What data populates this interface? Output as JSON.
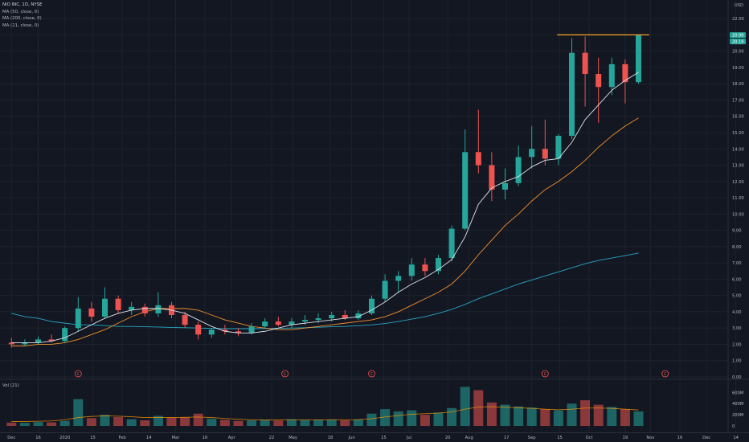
{
  "header": {
    "title": "NIO INC, 1D, NYSE",
    "indicators": [
      "MA (50, close, 0)",
      "MA (200, close, 0)",
      "MA (21, close, 0)"
    ],
    "currency": "USD",
    "volume_label": "Vol (21)"
  },
  "last_price_label": "20.99",
  "last_price_label_2": "20.19",
  "earnings_marker": "E",
  "chart_data": {
    "type": "candlestick",
    "title": "NIO INC, 1D, NYSE",
    "y_axis": {
      "ticks": [
        0,
        1,
        2,
        3,
        4,
        5,
        6,
        7,
        8,
        9,
        10,
        11,
        12,
        13,
        14,
        15,
        16,
        17,
        18,
        19,
        20,
        21,
        22
      ],
      "tick_labels": [
        "0.00",
        "1.00",
        "2.00",
        "3.00",
        "4.00",
        "5.00",
        "6.00",
        "7.00",
        "8.00",
        "9.00",
        "10.00",
        "11.00",
        "12.00",
        "13.00",
        "14.00",
        "15.00",
        "16.00",
        "17.00",
        "18.00",
        "19.00",
        "20.00",
        "21.00",
        "22.00"
      ],
      "range": [
        0,
        22.5
      ]
    },
    "volume_axis": {
      "ticks": [
        0,
        200,
        400,
        600
      ],
      "tick_labels": [
        "0",
        "200M",
        "400M",
        "600M"
      ],
      "units": "M"
    },
    "x_axis": {
      "tick_labels": [
        "Dec",
        "16",
        "2020",
        "15",
        "Feb",
        "14",
        "Mar",
        "16",
        "Apr",
        "22",
        "May",
        "18",
        "Jun",
        "15",
        "Jul",
        "20",
        "Aug",
        "17",
        "Sep",
        "15",
        "Oct",
        "19",
        "Nov",
        "16",
        "Dec",
        "14"
      ],
      "tick_weeks": [
        0.5,
        2.5,
        4.5,
        6.6,
        8.8,
        10.8,
        12.8,
        15.0,
        17.0,
        20.0,
        21.6,
        24.4,
        26.0,
        28.4,
        30.3,
        33.2,
        34.8,
        37.6,
        39.5,
        41.6,
        43.8,
        46.5,
        48.4,
        50.6,
        52.6,
        54.8
      ]
    },
    "weekly_candles": [
      {
        "o": 2.1,
        "h": 2.4,
        "l": 1.8,
        "c": 2.0
      },
      {
        "o": 2.0,
        "h": 2.3,
        "l": 1.9,
        "c": 2.1
      },
      {
        "o": 2.1,
        "h": 2.5,
        "l": 2.0,
        "c": 2.3
      },
      {
        "o": 2.3,
        "h": 2.6,
        "l": 2.1,
        "c": 2.2
      },
      {
        "o": 2.2,
        "h": 3.1,
        "l": 2.1,
        "c": 3.0
      },
      {
        "o": 3.0,
        "h": 4.9,
        "l": 2.8,
        "c": 4.2
      },
      {
        "o": 4.2,
        "h": 4.6,
        "l": 3.4,
        "c": 3.7
      },
      {
        "o": 3.7,
        "h": 5.5,
        "l": 3.6,
        "c": 4.8
      },
      {
        "o": 4.8,
        "h": 5.0,
        "l": 3.9,
        "c": 4.1
      },
      {
        "o": 4.1,
        "h": 4.6,
        "l": 3.8,
        "c": 4.3
      },
      {
        "o": 4.3,
        "h": 4.5,
        "l": 3.7,
        "c": 3.9
      },
      {
        "o": 3.9,
        "h": 5.2,
        "l": 3.7,
        "c": 4.4
      },
      {
        "o": 4.4,
        "h": 4.6,
        "l": 3.6,
        "c": 3.8
      },
      {
        "o": 3.8,
        "h": 4.0,
        "l": 3.0,
        "c": 3.2
      },
      {
        "o": 3.2,
        "h": 3.4,
        "l": 2.3,
        "c": 2.6
      },
      {
        "o": 2.6,
        "h": 3.0,
        "l": 2.4,
        "c": 2.9
      },
      {
        "o": 2.9,
        "h": 3.2,
        "l": 2.6,
        "c": 2.8
      },
      {
        "o": 2.8,
        "h": 3.0,
        "l": 2.5,
        "c": 2.7
      },
      {
        "o": 2.7,
        "h": 3.3,
        "l": 2.6,
        "c": 3.1
      },
      {
        "o": 3.1,
        "h": 3.6,
        "l": 3.0,
        "c": 3.4
      },
      {
        "o": 3.4,
        "h": 3.7,
        "l": 3.1,
        "c": 3.2
      },
      {
        "o": 3.2,
        "h": 3.6,
        "l": 3.0,
        "c": 3.4
      },
      {
        "o": 3.4,
        "h": 3.8,
        "l": 3.2,
        "c": 3.5
      },
      {
        "o": 3.5,
        "h": 3.9,
        "l": 3.3,
        "c": 3.6
      },
      {
        "o": 3.6,
        "h": 4.0,
        "l": 3.4,
        "c": 3.8
      },
      {
        "o": 3.8,
        "h": 4.1,
        "l": 3.5,
        "c": 3.6
      },
      {
        "o": 3.6,
        "h": 4.1,
        "l": 3.5,
        "c": 3.9
      },
      {
        "o": 3.9,
        "h": 5.0,
        "l": 3.8,
        "c": 4.8
      },
      {
        "o": 4.8,
        "h": 6.3,
        "l": 4.6,
        "c": 5.9
      },
      {
        "o": 5.9,
        "h": 6.5,
        "l": 5.2,
        "c": 6.2
      },
      {
        "o": 6.2,
        "h": 7.3,
        "l": 5.9,
        "c": 6.9
      },
      {
        "o": 6.9,
        "h": 7.3,
        "l": 6.2,
        "c": 6.5
      },
      {
        "o": 6.5,
        "h": 7.5,
        "l": 6.3,
        "c": 7.3
      },
      {
        "o": 7.3,
        "h": 9.3,
        "l": 7.1,
        "c": 9.1
      },
      {
        "o": 9.1,
        "h": 15.2,
        "l": 9.0,
        "c": 13.8
      },
      {
        "o": 13.8,
        "h": 16.4,
        "l": 12.5,
        "c": 13.0
      },
      {
        "o": 13.0,
        "h": 13.8,
        "l": 10.8,
        "c": 11.5
      },
      {
        "o": 11.5,
        "h": 12.8,
        "l": 10.9,
        "c": 11.9
      },
      {
        "o": 11.9,
        "h": 14.2,
        "l": 11.7,
        "c": 13.5
      },
      {
        "o": 13.5,
        "h": 15.4,
        "l": 12.8,
        "c": 14.0
      },
      {
        "o": 14.0,
        "h": 15.8,
        "l": 13.0,
        "c": 13.4
      },
      {
        "o": 13.4,
        "h": 14.9,
        "l": 13.0,
        "c": 14.8
      },
      {
        "o": 14.8,
        "h": 20.8,
        "l": 14.6,
        "c": 19.9
      },
      {
        "o": 19.9,
        "h": 20.9,
        "l": 16.6,
        "c": 18.6
      },
      {
        "o": 18.6,
        "h": 19.6,
        "l": 15.6,
        "c": 17.8
      },
      {
        "o": 17.8,
        "h": 19.6,
        "l": 17.3,
        "c": 19.2
      },
      {
        "o": 19.2,
        "h": 19.5,
        "l": 16.8,
        "c": 18.1
      },
      {
        "o": 18.1,
        "h": 20.99,
        "l": 18.0,
        "c": 20.99
      }
    ],
    "ma21_weekly": [
      2.1,
      2.1,
      2.1,
      2.2,
      2.4,
      2.8,
      3.2,
      3.6,
      3.9,
      4.1,
      4.2,
      4.2,
      4.1,
      3.9,
      3.5,
      3.1,
      2.8,
      2.7,
      2.7,
      2.8,
      3.0,
      3.2,
      3.3,
      3.4,
      3.5,
      3.6,
      3.7,
      4.1,
      4.6,
      5.2,
      5.7,
      6.1,
      6.6,
      7.2,
      8.6,
      10.6,
      11.6,
      12.0,
      12.3,
      12.9,
      13.3,
      13.4,
      14.4,
      15.8,
      16.7,
      17.6,
      18.2,
      18.7
    ],
    "ma50_weekly": [
      1.9,
      1.9,
      2.0,
      2.0,
      2.1,
      2.3,
      2.6,
      2.9,
      3.3,
      3.7,
      4.0,
      4.2,
      4.2,
      4.2,
      4.1,
      3.8,
      3.5,
      3.3,
      3.1,
      3.0,
      2.9,
      2.9,
      3.0,
      3.1,
      3.2,
      3.3,
      3.4,
      3.5,
      3.7,
      4.0,
      4.4,
      4.8,
      5.2,
      5.7,
      6.5,
      7.5,
      8.4,
      9.3,
      10.0,
      10.8,
      11.5,
      12.0,
      12.6,
      13.3,
      14.1,
      14.8,
      15.4,
      15.9
    ],
    "ma200_weekly": [
      3.9,
      3.7,
      3.6,
      3.4,
      3.3,
      3.2,
      3.2,
      3.15,
      3.1,
      3.1,
      3.08,
      3.06,
      3.04,
      3.02,
      3.0,
      2.98,
      2.97,
      2.96,
      2.96,
      2.97,
      2.98,
      3.0,
      3.02,
      3.05,
      3.08,
      3.1,
      3.14,
      3.2,
      3.28,
      3.4,
      3.55,
      3.7,
      3.9,
      4.15,
      4.45,
      4.8,
      5.1,
      5.4,
      5.7,
      5.95,
      6.2,
      6.45,
      6.7,
      6.95,
      7.15,
      7.3,
      7.45,
      7.6
    ],
    "volume_weekly_m": [
      60,
      55,
      70,
      65,
      90,
      480,
      140,
      200,
      160,
      120,
      100,
      180,
      150,
      160,
      220,
      130,
      110,
      90,
      100,
      110,
      95,
      120,
      105,
      110,
      115,
      100,
      120,
      220,
      300,
      260,
      280,
      200,
      240,
      320,
      700,
      640,
      420,
      380,
      350,
      330,
      300,
      280,
      400,
      460,
      380,
      340,
      300,
      260
    ],
    "volume_ma_m": [
      80,
      80,
      85,
      90,
      110,
      150,
      170,
      180,
      175,
      165,
      150,
      150,
      150,
      155,
      160,
      150,
      135,
      120,
      110,
      105,
      105,
      108,
      108,
      110,
      112,
      110,
      112,
      130,
      160,
      185,
      210,
      220,
      230,
      250,
      300,
      340,
      345,
      335,
      325,
      315,
      300,
      290,
      300,
      320,
      320,
      315,
      300,
      285
    ],
    "resistance_level": 21.0,
    "earnings_marker_weeks": [
      5.5,
      21.0,
      27.5,
      40.5,
      49.5
    ]
  }
}
